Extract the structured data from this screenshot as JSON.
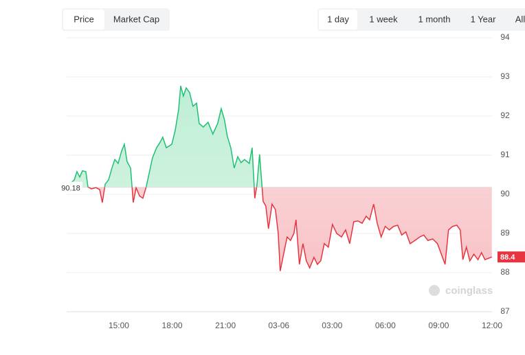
{
  "tabs": [
    "Price",
    "Market Cap"
  ],
  "active_tab": 0,
  "ranges": [
    "1 day",
    "1 week",
    "1 month",
    "1 Year",
    "All"
  ],
  "active_range": 0,
  "watermark": "coinglass",
  "chart_data": {
    "type": "line",
    "x": [
      0.33,
      0.49,
      0.64,
      0.8,
      0.95,
      1.14,
      1.26,
      1.45,
      1.72,
      1.92,
      2.07,
      2.23,
      2.42,
      2.61,
      2.77,
      2.96,
      3.15,
      3.31,
      3.46,
      3.66,
      3.81,
      3.97,
      4.16,
      4.35,
      4.54,
      4.74,
      4.89,
      5.12,
      5.32,
      5.47,
      5.67,
      5.98,
      6.17,
      6.36,
      6.48,
      6.63,
      6.79,
      6.98,
      7.17,
      7.37,
      7.52,
      7.75,
      8.02,
      8.29,
      8.56,
      8.76,
      8.95,
      9.1,
      9.3,
      9.49,
      9.69,
      9.88,
      10.07,
      10.34,
      10.5,
      10.65,
      10.77,
      10.92,
      11.12,
      11.27,
      11.42,
      11.62,
      11.81,
      11.97,
      12.08,
      12.27,
      12.47,
      12.66,
      12.85,
      12.97,
      13.16,
      13.36,
      13.55,
      13.74,
      13.98,
      14.17,
      14.36,
      14.56,
      14.79,
      15.02,
      15.26,
      15.53,
      15.76,
      15.99,
      16.22,
      16.45,
      16.69,
      16.92,
      17.11,
      17.34,
      17.54,
      17.76,
      17.99,
      18.22,
      18.46,
      18.69,
      18.92,
      19.15,
      19.39,
      19.66,
      19.93,
      20.16,
      20.39,
      20.66,
      20.93,
      21.36,
      21.55,
      21.78,
      22.02,
      22.21,
      22.36,
      22.56,
      22.75,
      22.98,
      23.21,
      23.41,
      23.6,
      23.83,
      23.99
    ],
    "values": [
      90.3,
      90.37,
      90.58,
      90.44,
      90.6,
      90.58,
      90.19,
      90.14,
      90.17,
      90.12,
      89.79,
      90.26,
      90.37,
      90.67,
      90.89,
      90.79,
      91.1,
      91.28,
      90.84,
      90.67,
      89.79,
      90.17,
      89.96,
      89.9,
      90.19,
      90.61,
      90.93,
      91.19,
      91.33,
      91.46,
      91.19,
      91.28,
      91.63,
      92.16,
      92.77,
      92.51,
      92.72,
      92.6,
      92.25,
      92.33,
      91.81,
      91.72,
      91.84,
      91.54,
      91.81,
      92.19,
      91.89,
      91.49,
      91.19,
      90.67,
      90.96,
      90.81,
      90.89,
      90.79,
      91.19,
      89.9,
      90.23,
      91.02,
      89.82,
      89.7,
      89.12,
      89.75,
      89.61,
      89.0,
      88.04,
      88.47,
      88.91,
      88.82,
      89.0,
      89.35,
      88.21,
      88.74,
      88.3,
      88.12,
      88.39,
      88.21,
      88.3,
      88.74,
      88.65,
      89.23,
      89.0,
      88.91,
      89.09,
      88.74,
      89.3,
      89.32,
      89.26,
      89.44,
      89.35,
      89.75,
      89.26,
      88.91,
      89.18,
      89.09,
      89.18,
      89.21,
      88.96,
      89.04,
      88.74,
      88.82,
      88.91,
      88.96,
      88.82,
      88.86,
      88.74,
      88.21,
      89.09,
      89.18,
      89.21,
      89.09,
      88.33,
      88.65,
      88.3,
      88.47,
      88.33,
      88.51,
      88.33,
      88.37,
      88.4
    ],
    "baseline": 90.18,
    "up_color": "#1fbf75",
    "up_fill": "#bfeed5",
    "down_color": "#e8343f",
    "down_fill": "#f8c3c7",
    "xlim": [
      0,
      24
    ],
    "xticks": [
      {
        "value": 3,
        "label": "15:00"
      },
      {
        "value": 6,
        "label": "18:00"
      },
      {
        "value": 9,
        "label": "21:00"
      },
      {
        "value": 12,
        "label": "03-06"
      },
      {
        "value": 15,
        "label": "03:00"
      },
      {
        "value": 18,
        "label": "06:00"
      },
      {
        "value": 21,
        "label": "09:00"
      },
      {
        "value": 24,
        "label": "12:00"
      }
    ],
    "ylim": [
      87,
      94
    ],
    "yticks": [
      87,
      88,
      89,
      90,
      91,
      92,
      93,
      94
    ],
    "grid": true
  }
}
